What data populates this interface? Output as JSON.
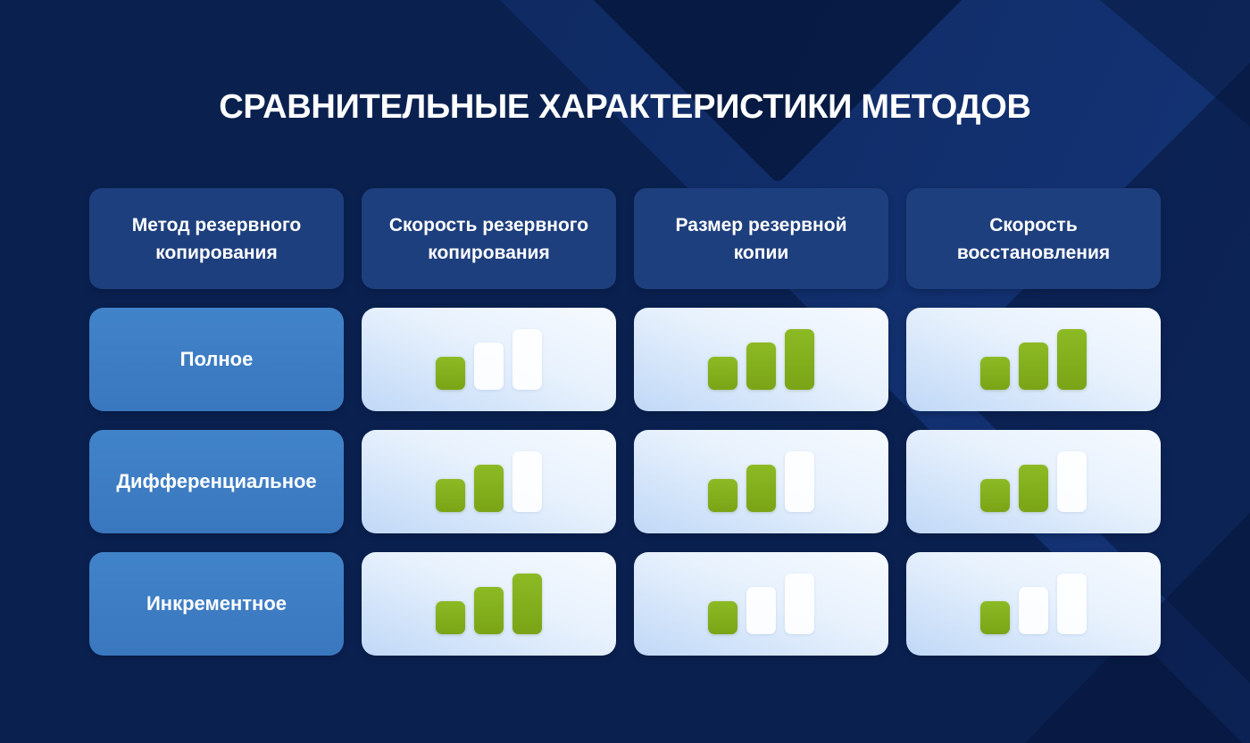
{
  "title": "СРАВНИТЕЛЬНЫЕ ХАРАКТЕРИСТИКИ МЕТОДОВ",
  "table": {
    "columns": [
      {
        "id": "method",
        "label": "Метод резервного копирования"
      },
      {
        "id": "backup_speed",
        "label": "Скорость резервного копирования"
      },
      {
        "id": "backup_size",
        "label": "Размер резервной копии"
      },
      {
        "id": "restore_speed",
        "label": "Скорость восстановления"
      }
    ],
    "rating_scale_max": 3,
    "rows": [
      {
        "id": "full",
        "method": "Полное",
        "backup_speed": 1,
        "backup_size": 3,
        "restore_speed": 3
      },
      {
        "id": "differential",
        "method": "Дифференциальное",
        "backup_speed": 2,
        "backup_size": 2,
        "restore_speed": 2
      },
      {
        "id": "incremental",
        "method": "Инкрементное",
        "backup_speed": 3,
        "backup_size": 1,
        "restore_speed": 1
      }
    ]
  },
  "colors": {
    "background": "#0A2150",
    "background_bright_band": "#15357A",
    "background_dark_shape": "#06163A",
    "header_cell": "#1E3F7E",
    "row_label_cell": "#3D7CC2",
    "data_cell_gradient_from": "#C0D8F7",
    "data_cell_gradient_to": "#F6FAFF",
    "bar_active_green": "#84B01D",
    "bar_inactive_white": "#F2F7FD",
    "title_text": "#FFFFFF"
  }
}
